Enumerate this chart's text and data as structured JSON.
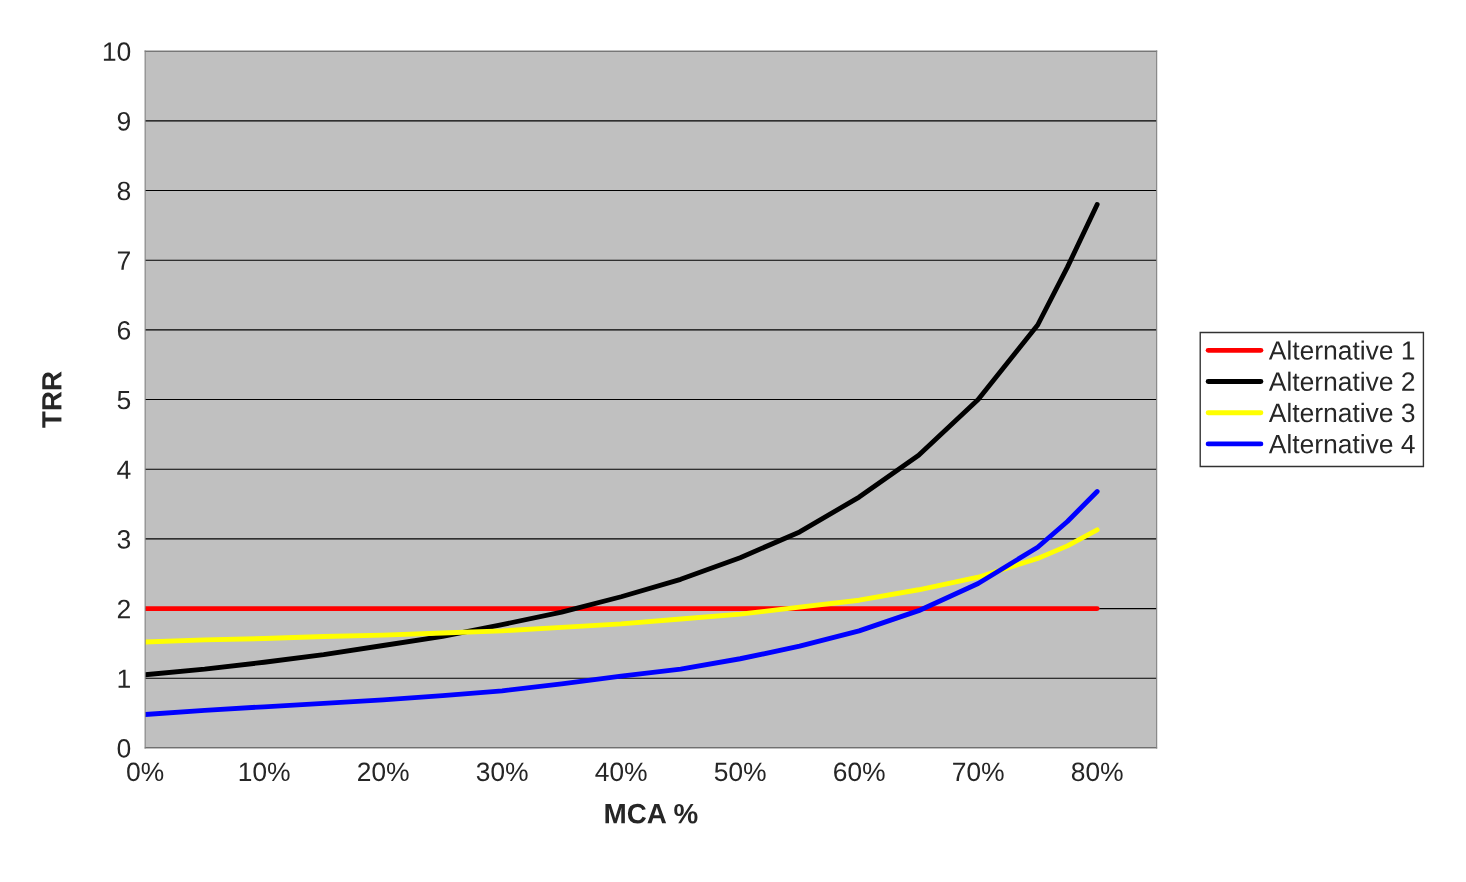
{
  "chart_data": {
    "type": "line",
    "xlabel": "MCA %",
    "ylabel": "TRR",
    "x": [
      0,
      5,
      10,
      15,
      20,
      25,
      30,
      35,
      40,
      45,
      50,
      55,
      60,
      65,
      70,
      75,
      77.5,
      80
    ],
    "series": [
      {
        "name": "Alternative 1",
        "color": "#ff0000",
        "values": [
          2,
          2,
          2,
          2,
          2,
          2,
          2,
          2,
          2,
          2,
          2,
          2,
          2,
          2,
          2,
          2,
          2,
          2
        ]
      },
      {
        "name": "Alternative 2",
        "color": "#000000",
        "values": [
          1.05,
          1.13,
          1.23,
          1.34,
          1.47,
          1.6,
          1.77,
          1.95,
          2.17,
          2.42,
          2.73,
          3.1,
          3.6,
          4.2,
          5.0,
          6.07,
          6.9,
          7.8
        ]
      },
      {
        "name": "Alternative 3",
        "color": "#ffff00",
        "values": [
          1.52,
          1.55,
          1.57,
          1.6,
          1.62,
          1.65,
          1.68,
          1.73,
          1.78,
          1.85,
          1.92,
          2.02,
          2.12,
          2.27,
          2.45,
          2.72,
          2.9,
          3.13
        ]
      },
      {
        "name": "Alternative 4",
        "color": "#0000ff",
        "values": [
          0.48,
          0.54,
          0.59,
          0.64,
          0.69,
          0.75,
          0.82,
          0.92,
          1.03,
          1.13,
          1.28,
          1.46,
          1.68,
          1.97,
          2.36,
          2.88,
          3.25,
          3.68
        ]
      }
    ],
    "xlim": [
      0,
      85
    ],
    "xticks": [
      {
        "value": 0,
        "label": "0%"
      },
      {
        "value": 10,
        "label": "10%"
      },
      {
        "value": 20,
        "label": "20%"
      },
      {
        "value": 30,
        "label": "30%"
      },
      {
        "value": 40,
        "label": "40%"
      },
      {
        "value": 50,
        "label": "50%"
      },
      {
        "value": 60,
        "label": "60%"
      },
      {
        "value": 70,
        "label": "70%"
      },
      {
        "value": 80,
        "label": "80%"
      }
    ],
    "ylim": [
      0,
      10
    ],
    "yticks": [
      0,
      1,
      2,
      3,
      4,
      5,
      6,
      7,
      8,
      9,
      10
    ],
    "grid": "y",
    "legend": "right",
    "marker": "none",
    "line_style": "solid"
  }
}
